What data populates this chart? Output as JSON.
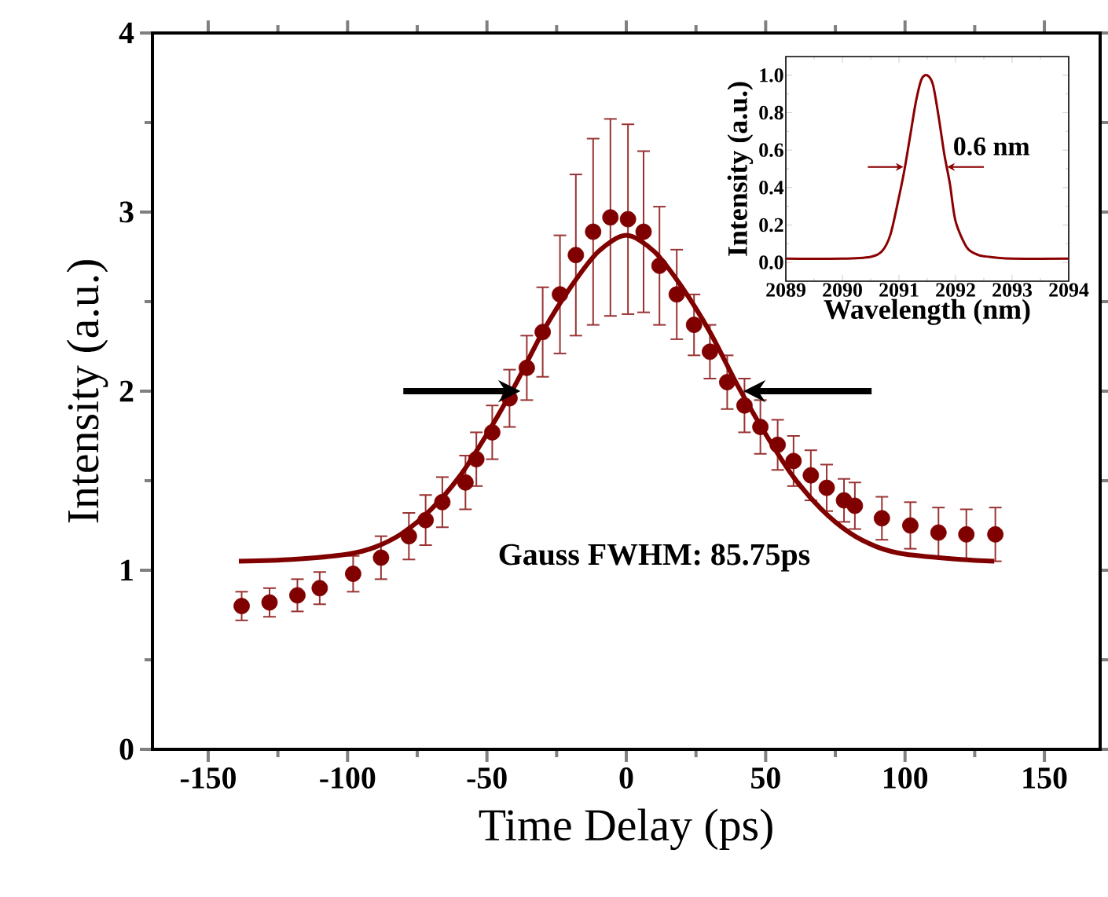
{
  "chart_data": [
    {
      "type": "scatter",
      "xlabel": "Time Delay (ps)",
      "ylabel": "Intensity (a.u.)",
      "xlim": [
        -170,
        170
      ],
      "ylim": [
        0,
        4
      ],
      "xticks": [
        -150,
        -100,
        -50,
        0,
        50,
        100,
        150
      ],
      "yticks": [
        0,
        1,
        2,
        3,
        4
      ],
      "annotations": [
        "Gauss FWHM: 85.75ps"
      ],
      "series": [
        {
          "type": "scatter",
          "marker": "circle",
          "color": "#800000",
          "x": [
            -138,
            -128,
            -118,
            -110,
            -98,
            -88,
            -78,
            -72,
            -66,
            -57.7,
            -53.8,
            -48.1,
            -41.9,
            -35.7,
            -30,
            -23.8,
            -18.1,
            -11.9,
            -5.7,
            0.6,
            6.2,
            11.9,
            18.1,
            24.3,
            30,
            36.2,
            42.4,
            48.1,
            54.3,
            60,
            66.2,
            71.9,
            78.1,
            82,
            91.7,
            101.9,
            112,
            122,
            132.4
          ],
          "values": [
            0.8,
            0.82,
            0.86,
            0.9,
            0.98,
            1.07,
            1.19,
            1.28,
            1.38,
            1.49,
            1.62,
            1.77,
            1.96,
            2.13,
            2.33,
            2.54,
            2.76,
            2.89,
            2.97,
            2.96,
            2.89,
            2.7,
            2.54,
            2.37,
            2.22,
            2.05,
            1.92,
            1.8,
            1.7,
            1.61,
            1.53,
            1.46,
            1.39,
            1.36,
            1.29,
            1.25,
            1.21,
            1.2,
            1.2
          ],
          "errors": [
            0.08,
            0.08,
            0.09,
            0.09,
            0.1,
            0.12,
            0.13,
            0.14,
            0.14,
            0.15,
            0.15,
            0.15,
            0.16,
            0.18,
            0.25,
            0.33,
            0.45,
            0.52,
            0.55,
            0.53,
            0.45,
            0.33,
            0.25,
            0.17,
            0.15,
            0.15,
            0.15,
            0.15,
            0.14,
            0.14,
            0.14,
            0.13,
            0.12,
            0.13,
            0.12,
            0.13,
            0.14,
            0.14,
            0.15
          ]
        },
        {
          "type": "line",
          "marker": "none",
          "color": "#800000",
          "x": [
            -139,
            -120,
            -100,
            -90,
            -80,
            -70,
            -60,
            -50,
            -40,
            -30,
            -20,
            -10,
            0,
            10,
            20,
            30,
            40,
            50,
            60,
            70,
            80,
            90,
            100,
            120,
            132
          ],
          "values": [
            1.05,
            1.06,
            1.09,
            1.13,
            1.21,
            1.34,
            1.52,
            1.76,
            2.03,
            2.33,
            2.58,
            2.78,
            2.87,
            2.78,
            2.58,
            2.33,
            2.03,
            1.76,
            1.52,
            1.34,
            1.21,
            1.13,
            1.09,
            1.06,
            1.05
          ]
        }
      ]
    },
    {
      "type": "line",
      "xlabel": "Wavelength (nm)",
      "ylabel": "Intensity (a.u.)",
      "xlim": [
        2089,
        2094
      ],
      "ylim": [
        -0.1,
        1.1
      ],
      "xticks": [
        2089,
        2090,
        2091,
        2092,
        2093,
        2094
      ],
      "yticks": [
        {
          "value": 0,
          "label": "0.0"
        },
        {
          "value": 0.2,
          "label": "0.2"
        },
        {
          "value": 0.4,
          "label": "0.4"
        },
        {
          "value": 0.6,
          "label": "0.6"
        },
        {
          "value": 0.8,
          "label": "0.8"
        },
        {
          "value": 1.0,
          "label": "1.0"
        }
      ],
      "marker": "none",
      "annotations": [
        "0.6 nm"
      ],
      "series": [
        {
          "color": "#8b0000",
          "x": [
            2089,
            2090,
            2090.5,
            2090.7,
            2090.85,
            2091,
            2091.1,
            2091.2,
            2091.3,
            2091.4,
            2091.5,
            2091.6,
            2091.7,
            2091.8,
            2091.9,
            2092,
            2092.2,
            2092.4,
            2092.6,
            2093,
            2094
          ],
          "values": [
            0.02,
            0.02,
            0.03,
            0.06,
            0.15,
            0.35,
            0.5,
            0.68,
            0.86,
            0.98,
            1.0,
            0.95,
            0.78,
            0.58,
            0.42,
            0.22,
            0.08,
            0.04,
            0.03,
            0.02,
            0.02
          ]
        }
      ]
    }
  ]
}
